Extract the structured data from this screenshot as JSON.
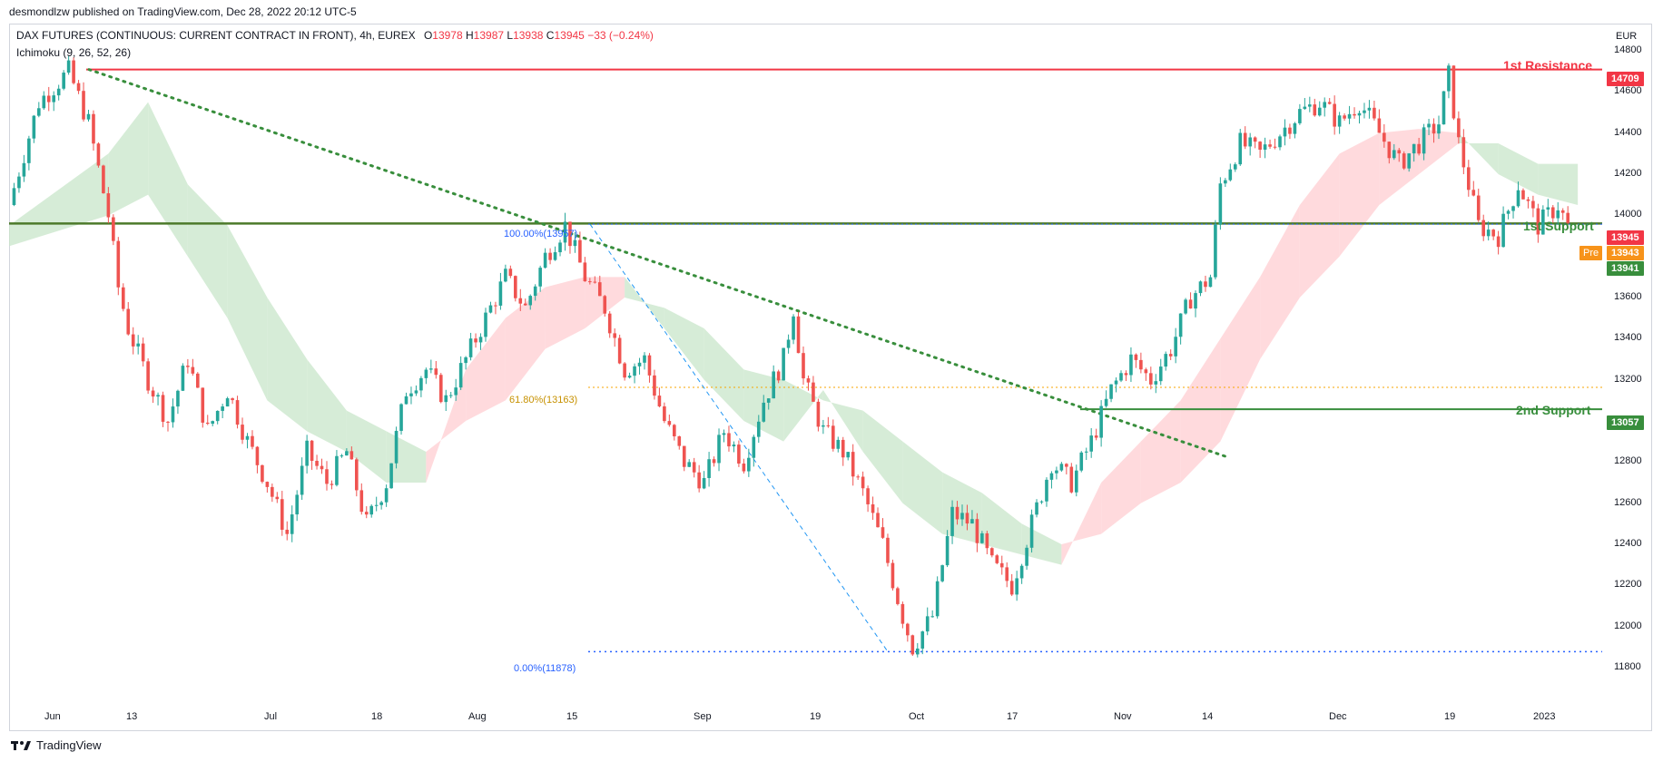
{
  "header": {
    "published": "desmondlzw published on TradingView.com, Dec 28, 2022 20:12 UTC-5"
  },
  "symbol": {
    "name": "DAX FUTURES (CONTINUOUS: CURRENT CONTRACT IN FRONT), 4h, EUREX",
    "o_label": "O",
    "o": "13978",
    "h_label": "H",
    "h": "13987",
    "l_label": "L",
    "l": "13938",
    "c_label": "C",
    "c": "13945",
    "change": "−33 (−0.24%)"
  },
  "indicator": "Ichimoku (9, 26, 52, 26)",
  "currency": "EUR",
  "footer": {
    "brand": "TradingView"
  },
  "colors": {
    "resistance": "#f23645",
    "support": "#388e3c",
    "bull": "#26a69a",
    "bear": "#ef5350",
    "cloud_bull": "#c8e6c9",
    "cloud_bear": "#ffcdd2",
    "fib_top": "#2962ff",
    "fib_mid": "#f7a600"
  },
  "labels": {
    "resistance1": "1st Resistance",
    "support1": "1st Support",
    "support2": "2nd Support",
    "fib_100": "100.00%(13957)",
    "fib_618": "61.80%(13163)",
    "fib_0": "0.00%(11878)",
    "pre": "Pre"
  },
  "chart_data": {
    "type": "candlestick",
    "title": "DAX FUTURES (CONTINUOUS: CURRENT CONTRACT IN FRONT), 4h, EUREX",
    "ylabel": "EUR",
    "ylim": [
      11700,
      14850
    ],
    "y_ticks": [
      11800,
      12000,
      12200,
      12400,
      12600,
      12800,
      13000,
      13200,
      13400,
      13600,
      13800,
      14000,
      14200,
      14400,
      14600,
      14800
    ],
    "x_ticks": [
      "Jun",
      "13",
      "Jul",
      "18",
      "Aug",
      "15",
      "Sep",
      "19",
      "Oct",
      "17",
      "Nov",
      "14",
      "Dec",
      "19",
      "2023"
    ],
    "price_tags": [
      {
        "label": "14709",
        "value": 14709,
        "color": "#f23645"
      },
      {
        "label": "13945",
        "value": 13945,
        "color": "#f23645"
      },
      {
        "label": "13943",
        "value": 13943,
        "color": "#f7931a"
      },
      {
        "label": "13941",
        "value": 13941,
        "color": "#388e3c"
      },
      {
        "label": "13057",
        "value": 13057,
        "color": "#388e3c"
      }
    ],
    "levels": [
      {
        "name": "1st Resistance",
        "value": 14709
      },
      {
        "name": "1st Support",
        "value": 13960
      },
      {
        "name": "2nd Support",
        "value": 13057
      }
    ],
    "fibonacci": [
      {
        "ratio": "100.00%",
        "value": 13957
      },
      {
        "ratio": "61.80%",
        "value": 13163
      },
      {
        "ratio": "0.00%",
        "value": 11878
      }
    ],
    "price_path": [
      {
        "t": 0,
        "p": 14050
      },
      {
        "t": 3,
        "p": 14550
      },
      {
        "t": 6,
        "p": 14700
      },
      {
        "t": 8,
        "p": 14450
      },
      {
        "t": 10,
        "p": 14000
      },
      {
        "t": 11,
        "p": 13650
      },
      {
        "t": 12,
        "p": 13450
      },
      {
        "t": 14,
        "p": 13200
      },
      {
        "t": 16,
        "p": 13000
      },
      {
        "t": 18,
        "p": 13300
      },
      {
        "t": 20,
        "p": 12950
      },
      {
        "t": 22,
        "p": 13150
      },
      {
        "t": 24,
        "p": 12900
      },
      {
        "t": 26,
        "p": 12700
      },
      {
        "t": 28,
        "p": 12450
      },
      {
        "t": 30,
        "p": 12850
      },
      {
        "t": 32,
        "p": 12700
      },
      {
        "t": 34,
        "p": 12850
      },
      {
        "t": 36,
        "p": 12500
      },
      {
        "t": 38,
        "p": 12700
      },
      {
        "t": 40,
        "p": 13150
      },
      {
        "t": 42,
        "p": 13250
      },
      {
        "t": 44,
        "p": 13100
      },
      {
        "t": 46,
        "p": 13300
      },
      {
        "t": 48,
        "p": 13500
      },
      {
        "t": 50,
        "p": 13700
      },
      {
        "t": 52,
        "p": 13550
      },
      {
        "t": 54,
        "p": 13800
      },
      {
        "t": 56,
        "p": 13950
      },
      {
        "t": 58,
        "p": 13700
      },
      {
        "t": 60,
        "p": 13550
      },
      {
        "t": 62,
        "p": 13250
      },
      {
        "t": 64,
        "p": 13300
      },
      {
        "t": 66,
        "p": 13000
      },
      {
        "t": 68,
        "p": 12800
      },
      {
        "t": 70,
        "p": 12700
      },
      {
        "t": 72,
        "p": 12950
      },
      {
        "t": 74,
        "p": 12800
      },
      {
        "t": 76,
        "p": 13100
      },
      {
        "t": 78,
        "p": 13300
      },
      {
        "t": 79,
        "p": 13550
      },
      {
        "t": 80,
        "p": 13200
      },
      {
        "t": 82,
        "p": 12950
      },
      {
        "t": 84,
        "p": 12850
      },
      {
        "t": 86,
        "p": 12650
      },
      {
        "t": 88,
        "p": 12400
      },
      {
        "t": 90,
        "p": 12050
      },
      {
        "t": 91,
        "p": 11900
      },
      {
        "t": 93,
        "p": 12050
      },
      {
        "t": 95,
        "p": 12550
      },
      {
        "t": 97,
        "p": 12500
      },
      {
        "t": 99,
        "p": 12300
      },
      {
        "t": 101,
        "p": 12200
      },
      {
        "t": 103,
        "p": 12500
      },
      {
        "t": 105,
        "p": 12800
      },
      {
        "t": 107,
        "p": 12700
      },
      {
        "t": 109,
        "p": 12900
      },
      {
        "t": 111,
        "p": 13150
      },
      {
        "t": 113,
        "p": 13300
      },
      {
        "t": 115,
        "p": 13200
      },
      {
        "t": 117,
        "p": 13350
      },
      {
        "t": 119,
        "p": 13600
      },
      {
        "t": 121,
        "p": 13700
      },
      {
        "t": 122,
        "p": 14150
      },
      {
        "t": 124,
        "p": 14350
      },
      {
        "t": 126,
        "p": 14300
      },
      {
        "t": 128,
        "p": 14400
      },
      {
        "t": 130,
        "p": 14500
      },
      {
        "t": 132,
        "p": 14550
      },
      {
        "t": 134,
        "p": 14450
      },
      {
        "t": 136,
        "p": 14550
      },
      {
        "t": 138,
        "p": 14400
      },
      {
        "t": 140,
        "p": 14250
      },
      {
        "t": 142,
        "p": 14350
      },
      {
        "t": 144,
        "p": 14450
      },
      {
        "t": 145,
        "p": 14680
      },
      {
        "t": 146,
        "p": 14350
      },
      {
        "t": 148,
        "p": 13950
      },
      {
        "t": 150,
        "p": 13900
      },
      {
        "t": 152,
        "p": 14150
      },
      {
        "t": 154,
        "p": 13950
      },
      {
        "t": 156,
        "p": 14050
      },
      {
        "t": 157,
        "p": 13945
      }
    ],
    "cloud": [
      {
        "t": 0,
        "a": 13950,
        "b": 13850
      },
      {
        "t": 10,
        "a": 14300,
        "b": 14000
      },
      {
        "t": 14,
        "a": 14550,
        "b": 14100
      },
      {
        "t": 18,
        "a": 14150,
        "b": 13800
      },
      {
        "t": 22,
        "a": 13950,
        "b": 13500
      },
      {
        "t": 26,
        "a": 13600,
        "b": 13100
      },
      {
        "t": 30,
        "a": 13300,
        "b": 12950
      },
      {
        "t": 34,
        "a": 13050,
        "b": 12850
      },
      {
        "t": 38,
        "a": 12950,
        "b": 12700
      },
      {
        "t": 42,
        "a": 12850,
        "b": 12700
      },
      {
        "t": 46,
        "a": 13000,
        "b": 13250
      },
      {
        "t": 50,
        "a": 13100,
        "b": 13500
      },
      {
        "t": 54,
        "a": 13350,
        "b": 13650
      },
      {
        "t": 58,
        "a": 13450,
        "b": 13700
      },
      {
        "t": 62,
        "a": 13600,
        "b": 13700
      },
      {
        "t": 66,
        "a": 13550,
        "b": 13450
      },
      {
        "t": 70,
        "a": 13450,
        "b": 13200
      },
      {
        "t": 74,
        "a": 13250,
        "b": 13000
      },
      {
        "t": 78,
        "a": 13200,
        "b": 12900
      },
      {
        "t": 82,
        "a": 13100,
        "b": 13150
      },
      {
        "t": 86,
        "a": 13050,
        "b": 12850
      },
      {
        "t": 90,
        "a": 12900,
        "b": 12600
      },
      {
        "t": 94,
        "a": 12750,
        "b": 12450
      },
      {
        "t": 98,
        "a": 12650,
        "b": 12400
      },
      {
        "t": 102,
        "a": 12500,
        "b": 12350
      },
      {
        "t": 106,
        "a": 12400,
        "b": 12300
      },
      {
        "t": 110,
        "a": 12450,
        "b": 12700
      },
      {
        "t": 114,
        "a": 12600,
        "b": 12900
      },
      {
        "t": 118,
        "a": 12700,
        "b": 13100
      },
      {
        "t": 122,
        "a": 12900,
        "b": 13400
      },
      {
        "t": 126,
        "a": 13300,
        "b": 13700
      },
      {
        "t": 130,
        "a": 13600,
        "b": 14050
      },
      {
        "t": 134,
        "a": 13800,
        "b": 14300
      },
      {
        "t": 138,
        "a": 14050,
        "b": 14400
      },
      {
        "t": 142,
        "a": 14200,
        "b": 14420
      },
      {
        "t": 146,
        "a": 14350,
        "b": 14400
      },
      {
        "t": 150,
        "a": 14350,
        "b": 14200
      },
      {
        "t": 154,
        "a": 14250,
        "b": 14100
      },
      {
        "t": 158,
        "a": 14250,
        "b": 14050
      }
    ]
  }
}
